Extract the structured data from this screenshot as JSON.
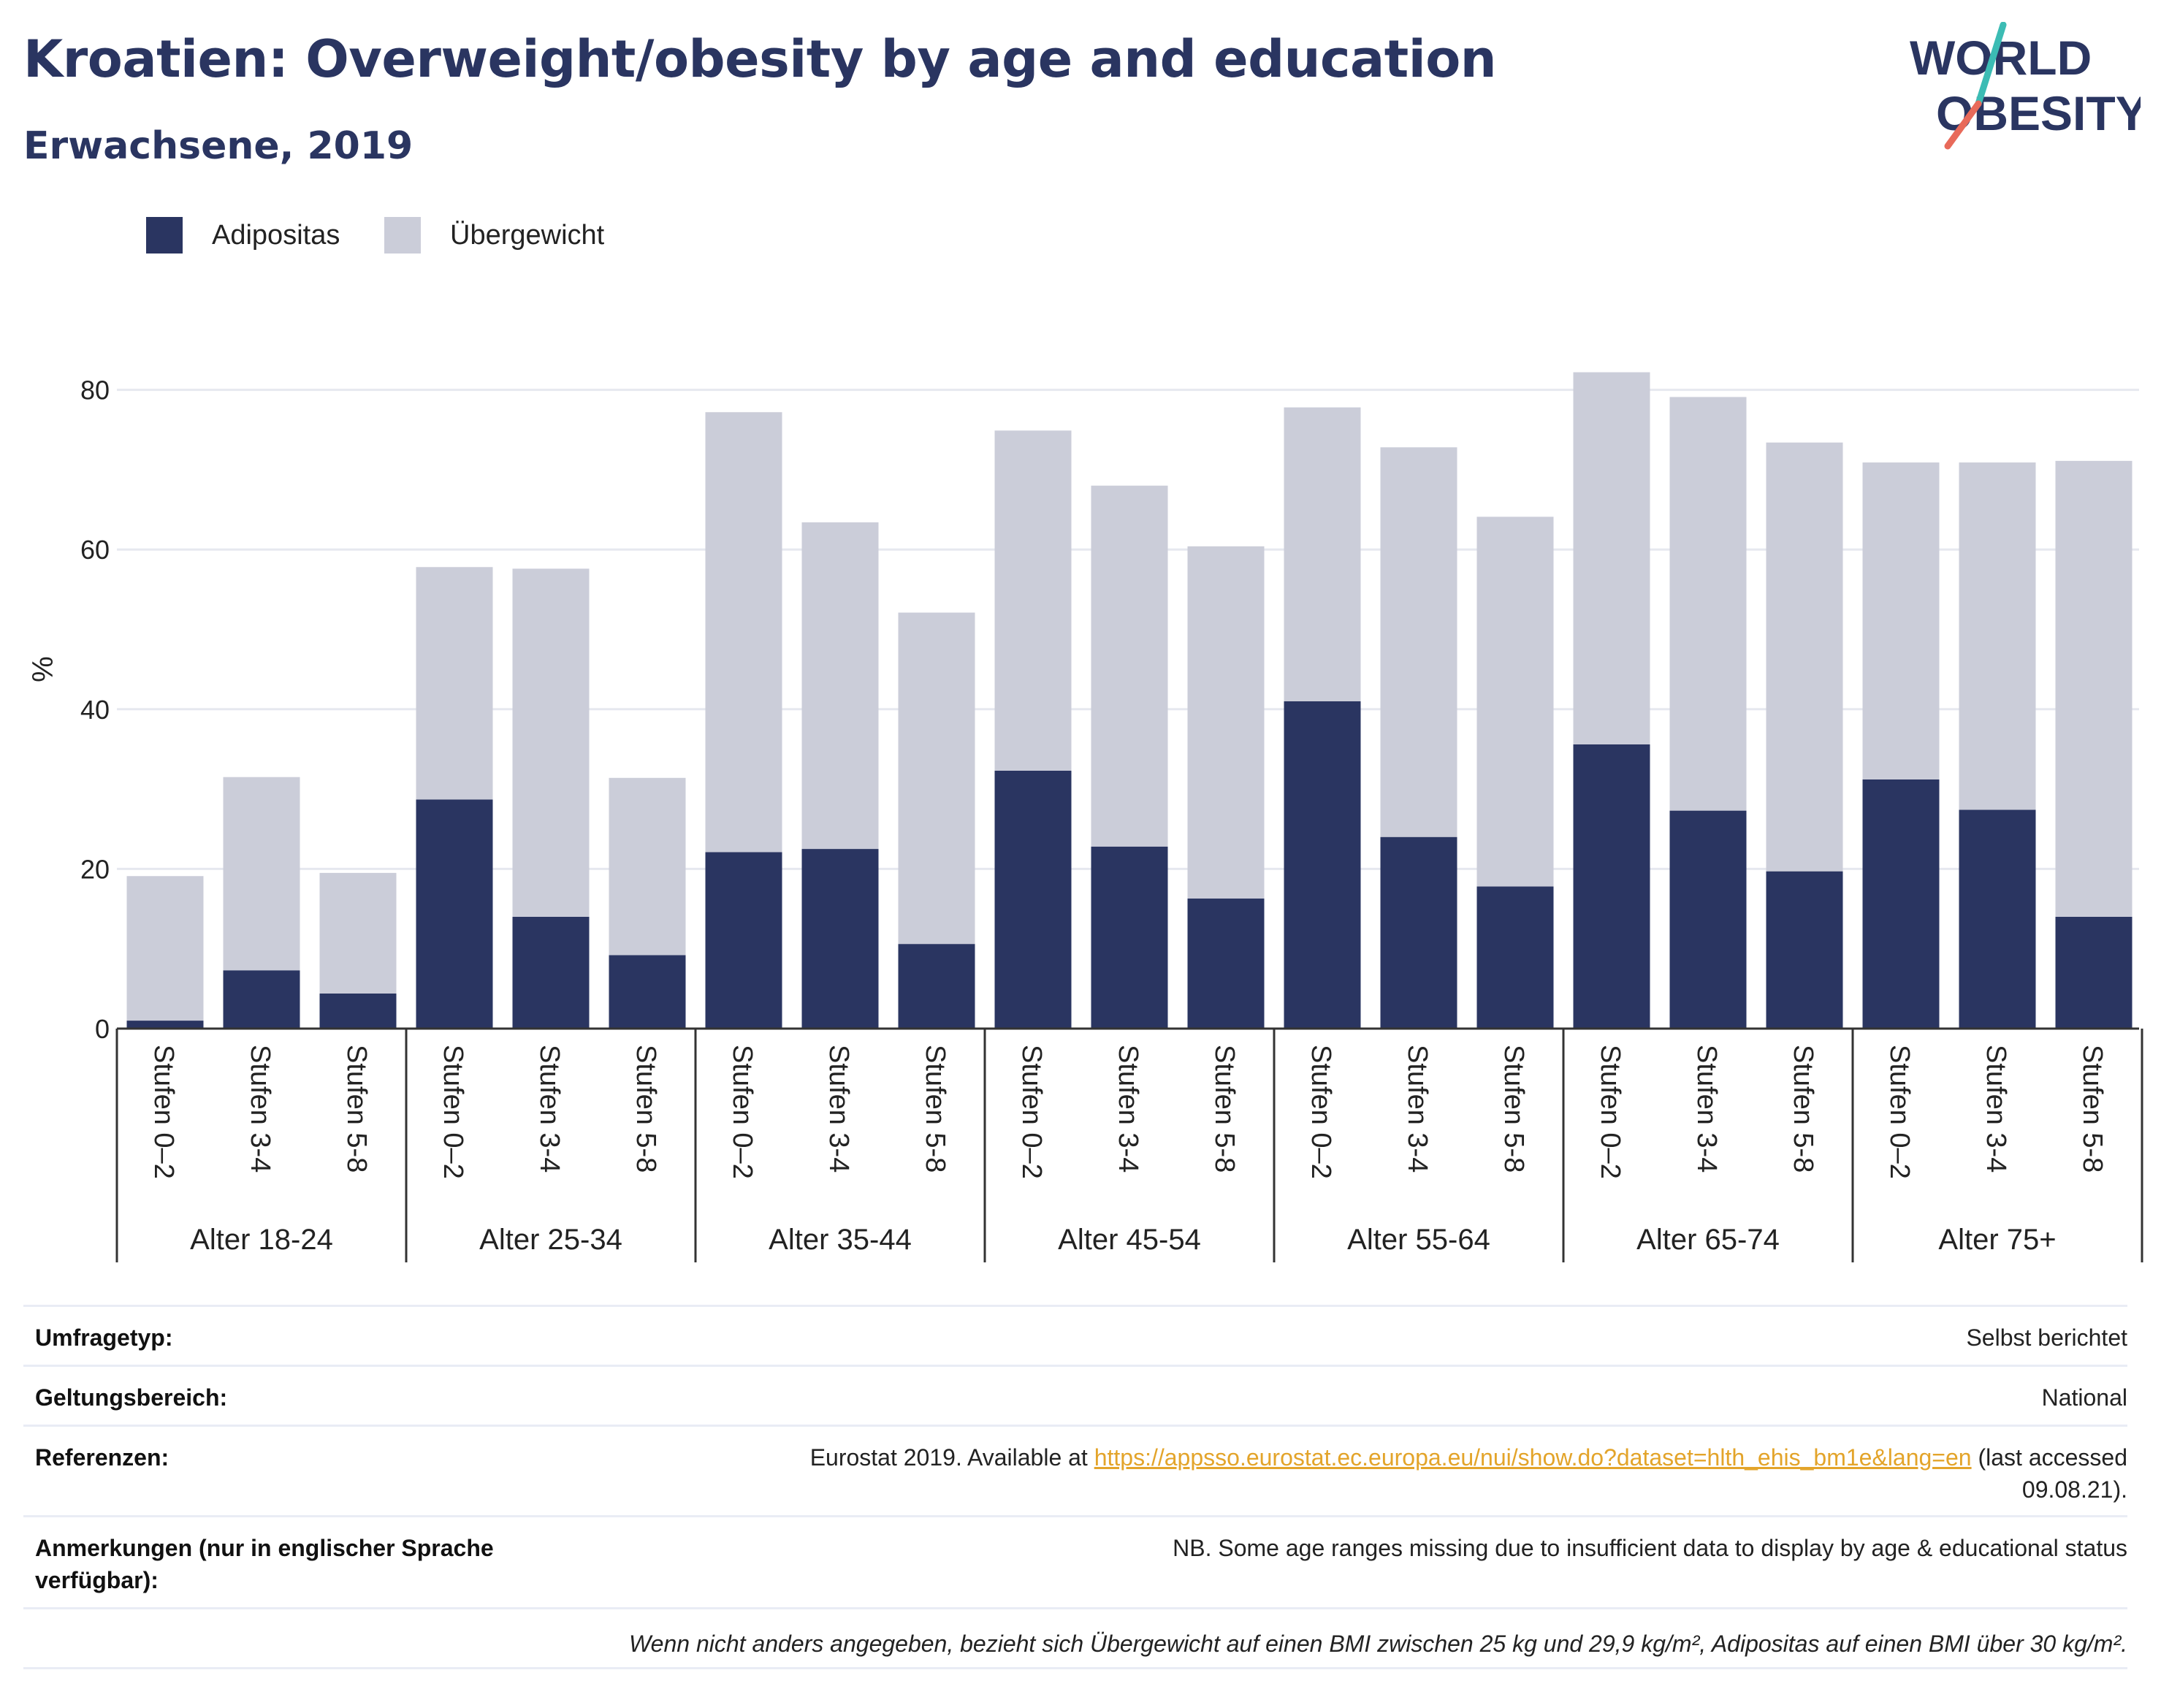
{
  "header": {
    "title": "Kroatien: Overweight/obesity by age and education",
    "subtitle": "Erwachsene, 2019"
  },
  "logo": {
    "line1": "WORLD",
    "line2": "OBESITY"
  },
  "colors": {
    "obesity": "#2a3561",
    "overweight": "#cbcdd9",
    "text": "#111111",
    "grid": "#e6e8ef",
    "link": "#e3a42a"
  },
  "legend": [
    {
      "label": "Adipositas",
      "color": "#2a3561"
    },
    {
      "label": "Übergewicht",
      "color": "#cbcdd9"
    }
  ],
  "chart_data": {
    "type": "bar",
    "stacked": true,
    "ylabel": "%",
    "ylim": [
      0,
      90
    ],
    "yticks": [
      0,
      20,
      40,
      60,
      80
    ],
    "grid": true,
    "legend_position": "top-left",
    "groups": [
      "Alter 18-24",
      "Alter 25-34",
      "Alter 35-44",
      "Alter 45-54",
      "Alter 55-64",
      "Alter 65-74",
      "Alter 75+"
    ],
    "subcategories": [
      "Stufen 0–2",
      "Stufen 3-4",
      "Stufen 5-8"
    ],
    "series": [
      {
        "name": "Adipositas",
        "values": [
          1.0,
          7.3,
          4.4,
          28.7,
          14.0,
          9.2,
          22.1,
          22.5,
          10.6,
          32.3,
          22.8,
          16.3,
          41.0,
          24.0,
          17.8,
          35.6,
          27.3,
          19.7,
          31.2,
          27.4,
          14.0
        ]
      },
      {
        "name": "Übergewicht",
        "values": [
          18.1,
          24.2,
          15.1,
          29.1,
          43.6,
          22.2,
          55.1,
          40.9,
          41.5,
          42.6,
          45.2,
          44.1,
          36.8,
          48.8,
          46.3,
          46.6,
          51.8,
          53.7,
          39.7,
          43.5,
          57.1
        ]
      }
    ]
  },
  "meta": [
    {
      "key": "Umfragetyp:",
      "value": "Selbst berichtet"
    },
    {
      "key": "Geltungsbereich:",
      "value": "National"
    },
    {
      "key": "Referenzen:",
      "value_prefix": "Eurostat 2019. Available at ",
      "link": "https://appsso.eurostat.ec.europa.eu/nui/show.do?dataset=hlth_ehis_bm1e&lang=en",
      "value_suffix": " (last accessed",
      "value_line2": "09.08.21)."
    },
    {
      "key": "Anmerkungen (nur in englischer Sprache verfügbar):",
      "value": "NB. Some age ranges missing due to insufficient data to display by age & educational status"
    }
  ],
  "footnote": "Wenn nicht anders angegeben, bezieht sich Übergewicht auf einen BMI zwischen 25 kg und 29,9 kg/m², Adipositas auf einen BMI über 30 kg/m²."
}
